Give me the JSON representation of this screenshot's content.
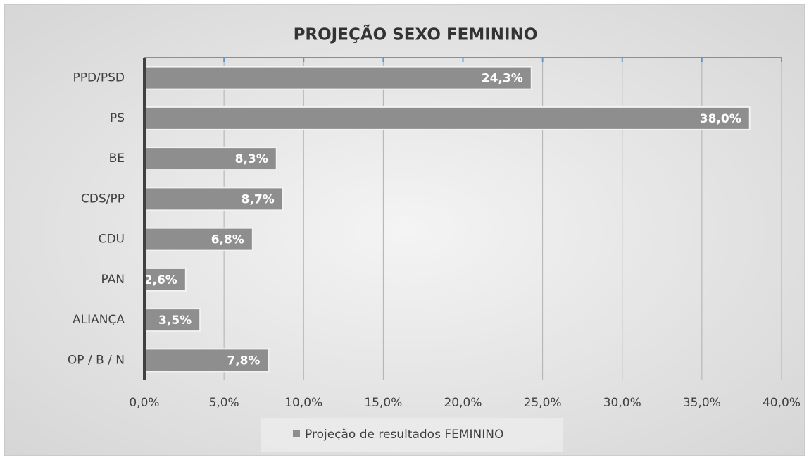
{
  "chart_data": {
    "type": "barh",
    "title": "PROJEÇÃO SEXO FEMININO",
    "categories": [
      "PPD/PSD",
      "PS",
      "BE",
      "CDS/PP",
      "CDU",
      "PAN",
      "ALIANÇA",
      "OP / B / N"
    ],
    "series": [
      {
        "name": "Projeção de resultados FEMININO",
        "color": "#8e8e8e",
        "values": [
          24.3,
          38.0,
          8.3,
          8.7,
          6.8,
          2.6,
          3.5,
          7.8
        ],
        "value_labels": [
          "24,3%",
          "38,0%",
          "8,3%",
          "8,7%",
          "6,8%",
          "2,6%",
          "3,5%",
          "7,8%"
        ]
      }
    ],
    "xlim": [
      0,
      40
    ],
    "xticks": [
      {
        "value": 0,
        "label": "0,0%"
      },
      {
        "value": 5,
        "label": "5,0%"
      },
      {
        "value": 10,
        "label": "10,0%"
      },
      {
        "value": 15,
        "label": "15,0%"
      },
      {
        "value": 20,
        "label": "20,0%"
      },
      {
        "value": 25,
        "label": "25,0%"
      },
      {
        "value": 30,
        "label": "30,0%"
      },
      {
        "value": 35,
        "label": "35,0%"
      },
      {
        "value": 40,
        "label": "40,0%"
      }
    ],
    "grid": true,
    "legend": "bottom"
  }
}
